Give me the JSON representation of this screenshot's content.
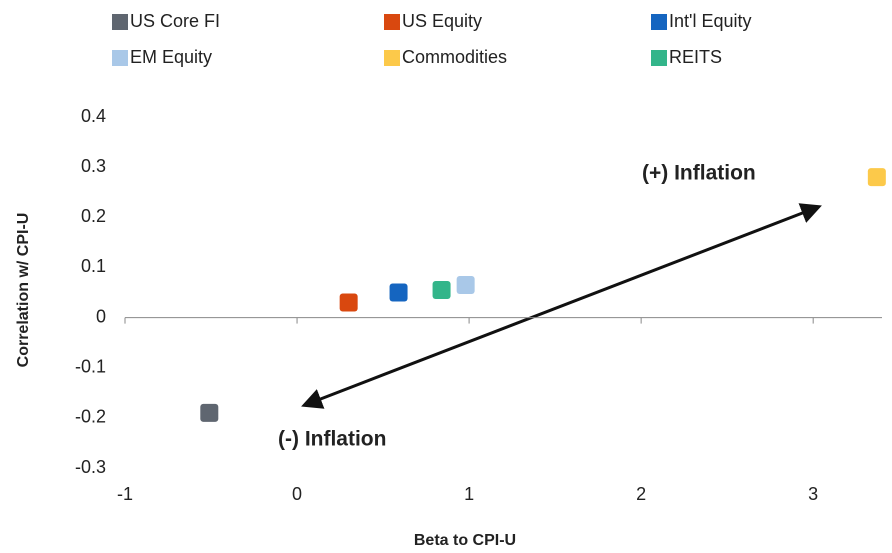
{
  "chart_data": {
    "type": "scatter",
    "xlabel": "Beta to CPI-U",
    "ylabel": "Correlation w/ CPI-U",
    "annotations": [
      "(+) Inflation",
      "(-) Inflation"
    ],
    "xlim": [
      -1,
      3.4
    ],
    "xticks": [
      -1,
      0,
      1,
      2,
      3
    ],
    "ylim": [
      -0.3,
      0.4
    ],
    "yticks": [
      -0.3,
      -0.2,
      -0.1,
      0,
      0.1,
      0.2,
      0.3,
      0.4
    ],
    "grid": false,
    "legend": "top",
    "series": [
      {
        "name": "US Core FI",
        "color": "#5f6670",
        "x": [
          -0.51
        ],
        "values": [
          -0.19
        ]
      },
      {
        "name": "US Equity",
        "color": "#d9480f",
        "x": [
          0.3
        ],
        "values": [
          0.03
        ]
      },
      {
        "name": "Int'l Equity",
        "color": "#1565c0",
        "x": [
          0.59
        ],
        "values": [
          0.05
        ]
      },
      {
        "name": "EM Equity",
        "color": "#a9c8e8",
        "x": [
          0.98
        ],
        "values": [
          0.065
        ]
      },
      {
        "name": "Commodities",
        "color": "#fcc94a",
        "x": [
          3.37
        ],
        "values": [
          0.28
        ]
      },
      {
        "name": "REITS",
        "color": "#33b58a",
        "x": [
          0.84
        ],
        "values": [
          0.055
        ]
      }
    ]
  }
}
